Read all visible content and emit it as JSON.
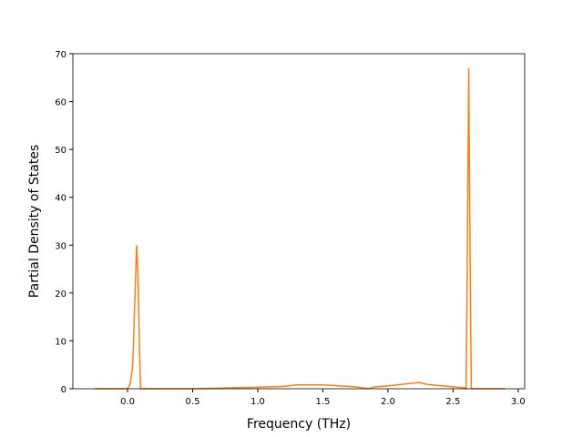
{
  "chart_data": {
    "type": "line",
    "xlabel": "Frequency (THz)",
    "ylabel": "Partial Density of States",
    "x": [
      -0.25,
      0.0,
      0.02,
      0.04,
      0.06,
      0.07,
      0.08,
      0.09,
      0.1,
      0.5,
      1.0,
      1.2,
      1.3,
      1.5,
      1.7,
      1.78,
      1.85,
      1.9,
      2.0,
      2.1,
      2.2,
      2.24,
      2.3,
      2.5,
      2.59,
      2.6,
      2.61,
      2.62,
      2.63,
      2.64,
      2.9
    ],
    "series": [
      {
        "color": "#ff7f0e",
        "values": [
          0,
          0,
          1,
          5,
          22,
          30,
          24,
          10,
          0,
          0,
          0.3,
          0.5,
          0.8,
          0.8,
          0.5,
          0.3,
          0,
          0.4,
          0.6,
          0.9,
          1.2,
          1.3,
          0.9,
          0.4,
          0.2,
          0,
          30,
          67,
          30,
          0,
          0
        ]
      }
    ],
    "xlim": [
      -0.42,
      3.05
    ],
    "ylim": [
      0,
      70
    ],
    "xticks": [
      {
        "value": 0,
        "label": "0.0"
      },
      0.5,
      {
        "value": 1,
        "label": "1.0"
      },
      1.5,
      {
        "value": 2,
        "label": "2.0"
      },
      2.5,
      {
        "value": 3,
        "label": "3.0"
      }
    ],
    "yticks": [
      0,
      10,
      20,
      30,
      40,
      50,
      60,
      70
    ]
  }
}
